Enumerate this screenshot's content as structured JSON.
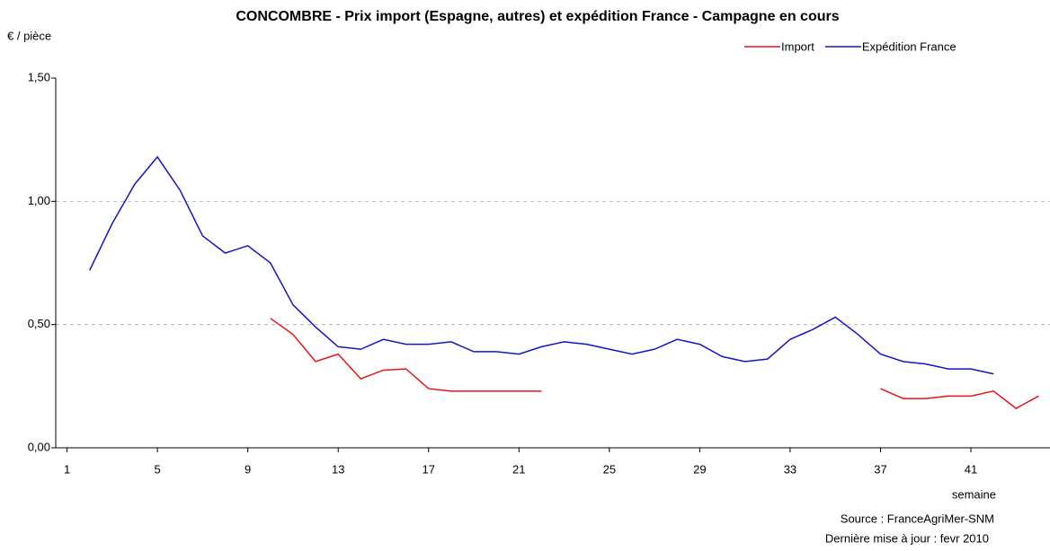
{
  "chart_data": {
    "type": "line",
    "title": "CONCOMBRE - Prix import (Espagne, autres)  et expédition France - Campagne en cours",
    "y_label": "€ / pièce",
    "x_label": "semaine",
    "source": "Source : FranceAgriMer-SNM",
    "update": "Dernière mise à jour : fevr 2010",
    "x": [
      1,
      2,
      3,
      4,
      5,
      6,
      7,
      8,
      9,
      10,
      11,
      12,
      13,
      14,
      15,
      16,
      17,
      18,
      19,
      20,
      21,
      22,
      23,
      24,
      25,
      26,
      27,
      28,
      29,
      30,
      31,
      32,
      33,
      34,
      35,
      36,
      37,
      38,
      39,
      40,
      41,
      42,
      43,
      44
    ],
    "xlim": [
      0.5,
      44.5
    ],
    "xticks": [
      1,
      5,
      9,
      13,
      17,
      21,
      25,
      29,
      33,
      37,
      41
    ],
    "ylim": [
      0,
      1.5
    ],
    "yticks": [
      {
        "value": 0,
        "label": "0,00"
      },
      {
        "value": 0.5,
        "label": "0,50"
      },
      {
        "value": 1,
        "label": "1,00"
      },
      {
        "value": 1.5,
        "label": "1,50"
      }
    ],
    "grid": true,
    "legend": "top-right",
    "series": [
      {
        "name": "Import",
        "color": "#e8141b",
        "values": [
          null,
          null,
          null,
          null,
          null,
          null,
          null,
          null,
          null,
          0.525,
          0.46,
          0.35,
          0.38,
          0.28,
          0.315,
          0.32,
          0.24,
          0.23,
          0.23,
          0.23,
          0.23,
          0.23,
          null,
          null,
          null,
          null,
          null,
          null,
          null,
          null,
          null,
          null,
          null,
          null,
          null,
          null,
          0.24,
          0.2,
          0.2,
          0.21,
          0.21,
          0.23,
          0.16,
          0.21
        ]
      },
      {
        "name": "Expédition France",
        "color": "#1414c8",
        "values": [
          null,
          0.72,
          0.91,
          1.07,
          1.18,
          1.045,
          0.86,
          0.79,
          0.82,
          0.75,
          0.58,
          0.49,
          0.41,
          0.4,
          0.44,
          0.42,
          0.42,
          0.43,
          0.39,
          0.39,
          0.38,
          0.41,
          0.43,
          0.42,
          0.4,
          0.38,
          0.4,
          0.44,
          0.42,
          0.37,
          0.35,
          0.36,
          0.44,
          0.48,
          0.53,
          0.46,
          0.38,
          0.35,
          0.34,
          0.32,
          0.32,
          0.3,
          null,
          null
        ]
      }
    ]
  }
}
